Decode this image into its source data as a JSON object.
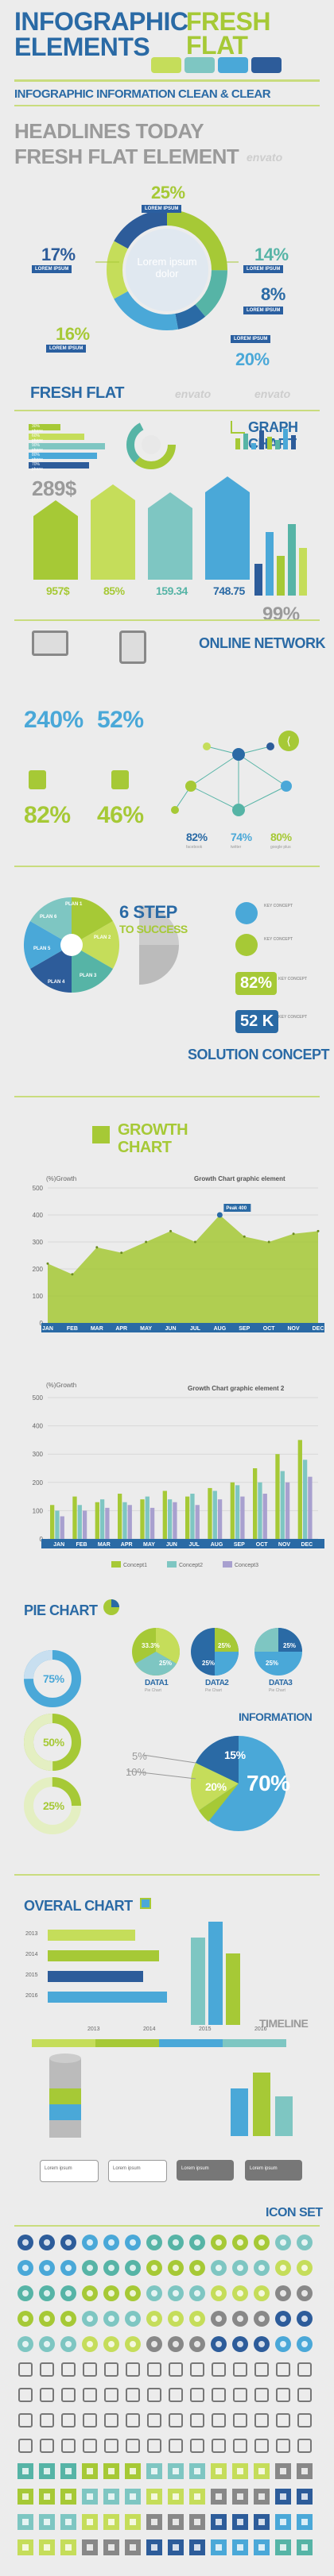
{
  "header": {
    "title_line1": "INFOGRAPHIC",
    "title_accent": "FRESH FLAT",
    "title_line2": "ELEMENTS",
    "subtitle": "INFOGRAPHIC INFORMATION CLEAN & CLEAR",
    "headline1": "HEADLINES TODAY",
    "headline2": "FRESH FLAT ELEMENT",
    "swatches": [
      "#c5dd5a",
      "#7ec6c2",
      "#4aa8d8",
      "#2d5c9a"
    ]
  },
  "donut": {
    "center_text": "Lorem ipsum dolor",
    "segments": [
      {
        "value": "25%",
        "label": "LOREM IPSUM",
        "color": "#a6c936"
      },
      {
        "value": "14%",
        "label": "LOREM IPSUM",
        "color": "#56b4a6"
      },
      {
        "value": "8%",
        "label": "LOREM IPSUM",
        "color": "#2a6aa5"
      },
      {
        "value": "20%",
        "label": "LOREM IPSUM",
        "color": "#4aa8d8"
      },
      {
        "value": "16%",
        "label": "LOREM IPSUM",
        "color": "#c5dd5a"
      },
      {
        "value": "17%",
        "label": "LOREM IPSUM",
        "color": "#2d5c9a"
      }
    ]
  },
  "freshflat": {
    "title": "FRESH FLAT",
    "graph_title": "GRAPH CHART",
    "percent_bars": [
      "30% phone",
      "60% phone",
      "90% phone",
      "80% phone",
      "70% phone"
    ],
    "price": "289$",
    "arrow_values": [
      "957$",
      "85%",
      "159.34",
      "748.75"
    ],
    "big_percent": "99%"
  },
  "network": {
    "title": "ONLINE NETWORK",
    "stats": [
      "240%",
      "52%",
      "82%",
      "46%"
    ],
    "social": [
      {
        "value": "82%",
        "label": "facebook"
      },
      {
        "value": "74%",
        "label": "twitter"
      },
      {
        "value": "80%",
        "label": "google plus"
      }
    ]
  },
  "steps": {
    "title_line1": "6 STEP",
    "title_line2": "TO SUCCESS",
    "plans": [
      "PLAN 1",
      "PLAN 2",
      "PLAN 3",
      "PLAN 4",
      "PLAN 5",
      "PLAN 6"
    ],
    "keyval1": "82%",
    "keyval2": "52 K",
    "solution": "SOLUTION CONCEPT",
    "key_items": [
      "KEY CONCEPT",
      "KEY CONCEPT",
      "KEY CONCEPT",
      "KEY CONCEPT"
    ]
  },
  "growth": {
    "title_line1": "GROWTH",
    "title_line2": "CHART"
  },
  "chart_data": [
    {
      "type": "area",
      "title": "Growth Chart graphic element",
      "ylabel": "(%)Growth",
      "categories": [
        "JAN",
        "FEB",
        "MAR",
        "APR",
        "MAY",
        "JUN",
        "JUL",
        "AUG",
        "SEP",
        "OCT",
        "NOV",
        "DEC"
      ],
      "values": [
        220,
        180,
        280,
        260,
        300,
        340,
        300,
        400,
        320,
        300,
        330,
        340
      ],
      "annotation": "Peak 400",
      "ylim": [
        0,
        500
      ],
      "yticks": [
        0,
        100,
        200,
        300,
        400,
        500
      ]
    },
    {
      "type": "bar",
      "title": "Growth Chart graphic element 2",
      "ylabel": "(%)Growth",
      "categories": [
        "JAN",
        "FEB",
        "MAR",
        "APR",
        "MAY",
        "JUN",
        "JUL",
        "AUG",
        "SEP",
        "OCT",
        "NOV",
        "DEC"
      ],
      "series": [
        {
          "name": "Concept1",
          "color": "#a6c936",
          "values": [
            120,
            150,
            130,
            160,
            140,
            170,
            150,
            180,
            200,
            250,
            300,
            350
          ]
        },
        {
          "name": "Concept2",
          "color": "#7ec6c2",
          "values": [
            100,
            120,
            140,
            130,
            150,
            140,
            160,
            170,
            190,
            200,
            240,
            280
          ]
        },
        {
          "name": "Concept3",
          "color": "#a8a0cf",
          "values": [
            80,
            100,
            110,
            120,
            110,
            130,
            120,
            140,
            150,
            160,
            200,
            220
          ]
        }
      ],
      "ylim": [
        0,
        500
      ],
      "yticks": [
        0,
        100,
        200,
        300,
        400,
        500
      ]
    }
  ],
  "pie": {
    "title": "PIE CHART",
    "rings": [
      "75%",
      "50%",
      "25%"
    ],
    "data_labels": [
      {
        "name": "DATA1",
        "sub": "Pie Chart"
      },
      {
        "name": "DATA2",
        "sub": "Pie Chart"
      },
      {
        "name": "DATA3",
        "sub": "Pie Chart"
      }
    ],
    "pie_values": [
      "33.3%",
      "25%",
      "25%",
      "25%",
      "25%",
      "25%"
    ],
    "info_title": "INFORMATION",
    "info_values": [
      "5%",
      "10%",
      "15%",
      "20%",
      "70%"
    ]
  },
  "overal": {
    "title": "OVERAL CHART",
    "years": [
      "2013",
      "2014",
      "2015",
      "2016"
    ],
    "timeline_title": "TIMELINE",
    "timeline_years": [
      "2013",
      "2014",
      "2015",
      "2016"
    ],
    "bubbles": [
      "Lorem ipsum",
      "Lorem ipsum",
      "Lorem ipsum",
      "Lorem ipsum"
    ]
  },
  "iconset": {
    "title": "ICON SET"
  },
  "watermark": "envato"
}
